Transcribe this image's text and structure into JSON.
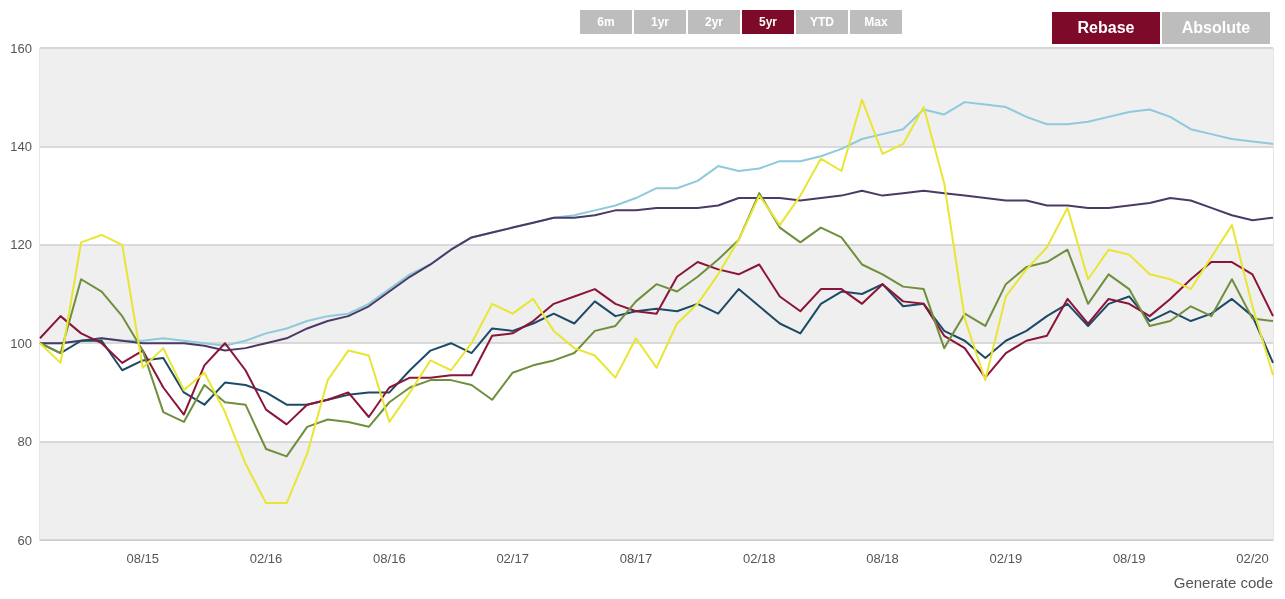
{
  "chart_data": {
    "type": "line",
    "categories": [
      null,
      null,
      null,
      null,
      null,
      "08/15",
      null,
      null,
      null,
      null,
      null,
      "02/16",
      null,
      null,
      null,
      null,
      null,
      "08/16",
      null,
      null,
      null,
      null,
      null,
      "02/17",
      null,
      null,
      null,
      null,
      null,
      "08/17",
      null,
      null,
      null,
      null,
      null,
      "02/18",
      null,
      null,
      null,
      null,
      null,
      "08/18",
      null,
      null,
      null,
      null,
      null,
      "02/19",
      null,
      null,
      null,
      null,
      null,
      "08/19",
      null,
      null,
      null,
      null,
      null,
      "02/20",
      null
    ],
    "series": [
      {
        "color": "#8ec9dc",
        "values": [
          100,
          100,
          100.5,
          101,
          100.5,
          100.5,
          101,
          100.5,
          100,
          99.5,
          100.5,
          102,
          103,
          104.5,
          105.5,
          106,
          108,
          111,
          114,
          116,
          119,
          121.5,
          122.5,
          123.5,
          124.5,
          125.5,
          126,
          127,
          128,
          129.5,
          131.5,
          131.5,
          133,
          136,
          135,
          135.5,
          137,
          137,
          138,
          139.5,
          141.5,
          142.5,
          143.5,
          147.5,
          146.5,
          149,
          148.5,
          148,
          146,
          144.5,
          144.5,
          145,
          146,
          147,
          147.5,
          146,
          143.5,
          142.5,
          141.5,
          141,
          140.5
        ]
      },
      {
        "color": "#4b3a66",
        "values": [
          100,
          100,
          100.5,
          101,
          100.5,
          100,
          100,
          100,
          99.5,
          98.5,
          99,
          100,
          101,
          103,
          104.5,
          105.5,
          107.5,
          110.5,
          113.5,
          116,
          119,
          121.5,
          122.5,
          123.5,
          124.5,
          125.5,
          125.5,
          126,
          127,
          127,
          127.5,
          127.5,
          127.5,
          128,
          129.5,
          129.5,
          129.5,
          129,
          129.5,
          130,
          131,
          130,
          130.5,
          131,
          130.5,
          130,
          129.5,
          129,
          129,
          128,
          128,
          127.5,
          127.5,
          128,
          128.5,
          129.5,
          129,
          127.5,
          126,
          125,
          125.5
        ]
      },
      {
        "color": "#1d4a66",
        "values": [
          100,
          98,
          100.5,
          100.5,
          94.5,
          96.5,
          97,
          90,
          87.5,
          92,
          91.5,
          90,
          87.5,
          87.5,
          88.5,
          89.5,
          90,
          90,
          94.5,
          98.5,
          100,
          98,
          103,
          102.5,
          104,
          106,
          104,
          108.5,
          105.5,
          106.5,
          107,
          106.5,
          108,
          106,
          111,
          107.5,
          104,
          102,
          108,
          110.5,
          110,
          112,
          107.5,
          108,
          102.5,
          100.5,
          97,
          100.5,
          102.5,
          105.5,
          108,
          103.5,
          108,
          109.5,
          104.5,
          106.5,
          104.5,
          106,
          109,
          105.5,
          96
        ]
      },
      {
        "color": "#8b1538",
        "values": [
          101,
          105.5,
          102,
          100,
          96,
          98.5,
          91,
          85.5,
          95.5,
          100,
          94.5,
          86.5,
          83.5,
          87.5,
          88.5,
          90,
          85,
          91,
          93,
          93,
          93.5,
          93.5,
          101.5,
          102,
          104.5,
          108,
          109.5,
          111,
          108,
          106.5,
          106,
          113.5,
          116.5,
          115,
          114,
          116,
          109.5,
          106.5,
          111,
          111,
          108,
          112,
          108.5,
          108,
          101.5,
          99,
          93,
          98,
          100.5,
          101.5,
          109,
          104,
          109,
          108,
          105.5,
          109,
          113,
          116.5,
          116.5,
          114,
          105.5
        ]
      },
      {
        "color": "#6f8f3c",
        "values": [
          100,
          98,
          113,
          110.5,
          105.5,
          98.5,
          86,
          84,
          91.5,
          88,
          87.5,
          78.5,
          77,
          83,
          84.5,
          84,
          83,
          88,
          91,
          92.5,
          92.5,
          91.5,
          88.5,
          94,
          95.5,
          96.5,
          98,
          102.5,
          103.5,
          108.5,
          112,
          110.5,
          113.5,
          117,
          121,
          130.5,
          123.5,
          120.5,
          123.5,
          121.5,
          116,
          114,
          111.5,
          111,
          99,
          106,
          103.5,
          112,
          115.5,
          116.5,
          119,
          108,
          114,
          111,
          103.5,
          104.5,
          107.5,
          105.5,
          113,
          105,
          104.5
        ]
      },
      {
        "color": "#e8e632",
        "values": [
          100,
          96,
          120.5,
          122,
          120,
          95,
          99,
          90.5,
          94,
          86,
          75.5,
          67.5,
          67.5,
          77.5,
          92.5,
          98.5,
          97.5,
          84,
          90,
          96.5,
          94.5,
          100,
          108,
          106,
          109,
          102.5,
          99,
          97.5,
          93,
          101,
          95,
          104,
          108,
          114,
          121,
          130,
          124,
          130,
          137.5,
          135,
          149.5,
          138.5,
          140.5,
          148,
          132.5,
          105,
          92.5,
          109.5,
          115,
          119.5,
          127.5,
          113,
          119,
          118,
          114,
          113,
          111,
          117.5,
          124,
          107.5,
          93.5
        ]
      }
    ],
    "ylim": [
      60,
      160
    ],
    "yticks": [
      60,
      80,
      100,
      120,
      140,
      160
    ],
    "grid": "y",
    "annotations": [
      "6m",
      "1yr",
      "2yr",
      "5yr",
      "YTD",
      "Max",
      "Rebase",
      "Absolute",
      "Generate code"
    ]
  }
}
